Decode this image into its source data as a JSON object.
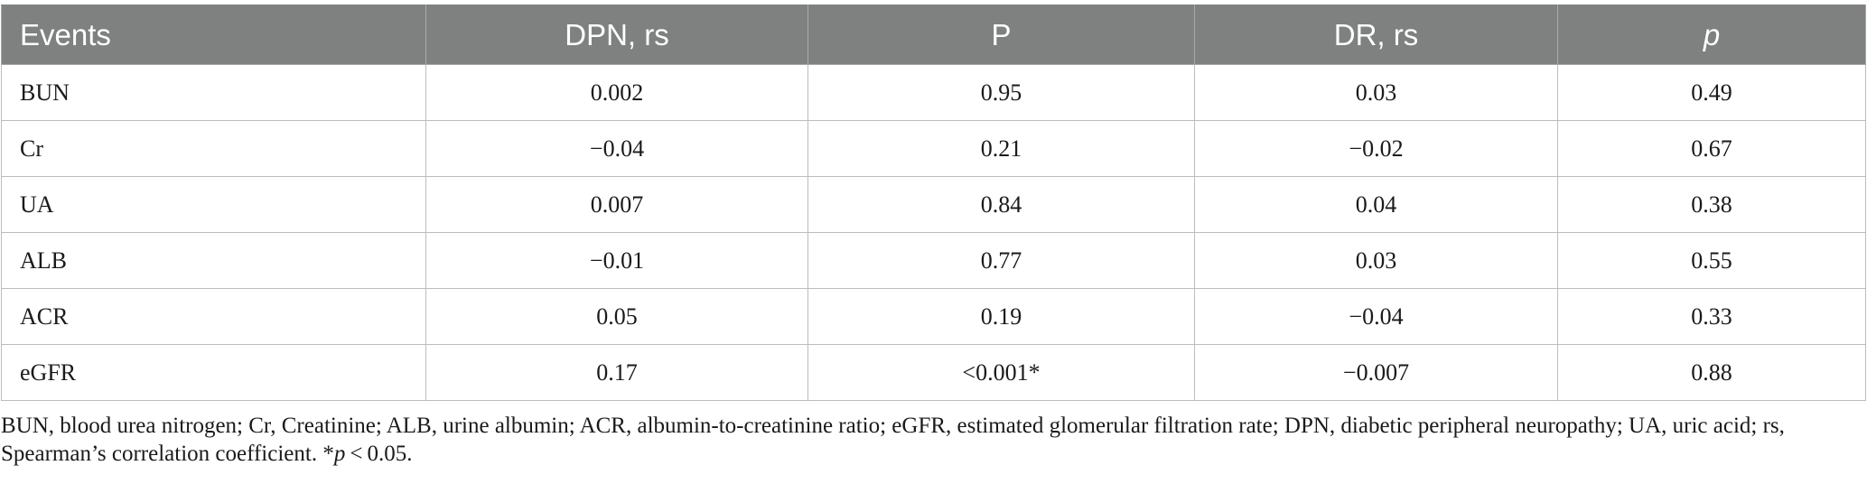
{
  "table": {
    "headers": [
      "Events",
      "DPN, rs",
      "P",
      "DR, rs",
      "p"
    ],
    "rows": [
      [
        "BUN",
        "0.002",
        "0.95",
        "0.03",
        "0.49"
      ],
      [
        "Cr",
        "−0.04",
        "0.21",
        "−0.02",
        "0.67"
      ],
      [
        "UA",
        "0.007",
        "0.84",
        "0.04",
        "0.38"
      ],
      [
        "ALB",
        "−0.01",
        "0.77",
        "0.03",
        "0.55"
      ],
      [
        "ACR",
        "0.05",
        "0.19",
        "−0.04",
        "0.33"
      ],
      [
        "eGFR",
        "0.17",
        "<0.001*",
        "−0.007",
        "0.88"
      ]
    ],
    "header_bg": "#7f8180",
    "header_text_color": "#ffffff"
  },
  "footnote": {
    "text_main": "BUN, blood urea nitrogen; Cr, Creatinine; ALB, urine albumin; ACR, albumin-to-creatinine ratio; eGFR, estimated glomerular filtration rate; DPN, diabetic peripheral neuropathy; UA, uric acid; rs, Spearman’s correlation coefficient. *",
    "p_symbol": "p",
    "threshold": " < 0.05."
  }
}
